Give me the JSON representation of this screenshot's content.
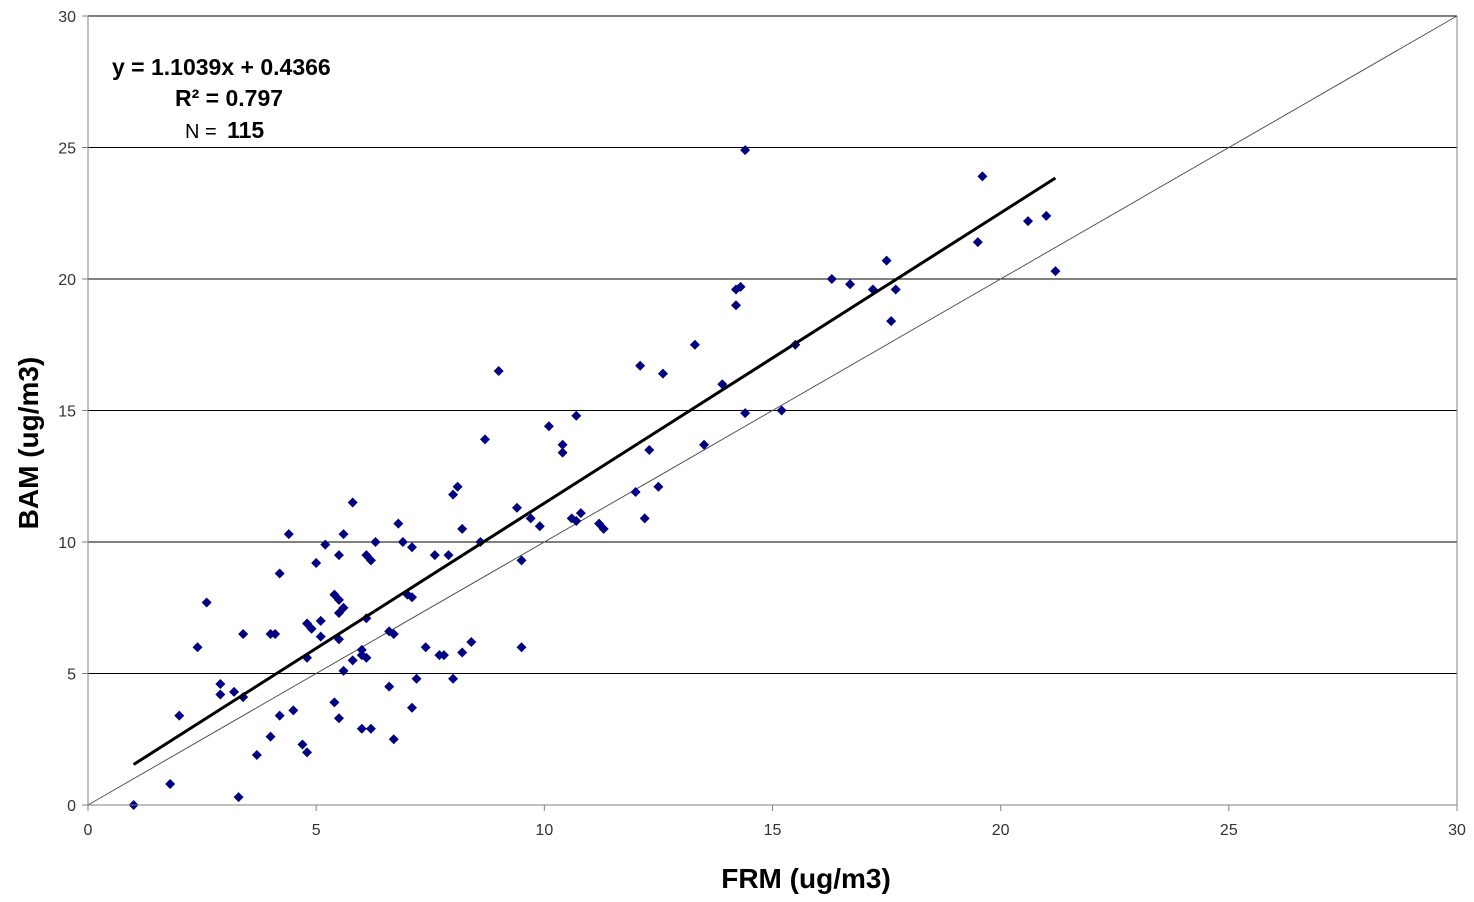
{
  "chart_data": {
    "type": "scatter",
    "xlabel": "FRM (ug/m3)",
    "ylabel": "BAM (ug/m3)",
    "xlim": [
      0,
      30
    ],
    "ylim": [
      0,
      30
    ],
    "x_ticks": [
      "0",
      "5",
      "10",
      "15",
      "20",
      "25",
      "30"
    ],
    "y_ticks": [
      "0",
      "5",
      "10",
      "15",
      "20",
      "25",
      "30"
    ],
    "grid": "horizontal",
    "marker_color": "#000080",
    "annotations": {
      "equation": "y = 1.1039x + 0.4366",
      "r_squared": "R² = 0.797",
      "n_label": "N =",
      "n_value": "115"
    },
    "trendline": {
      "slope": 1.1039,
      "intercept": 0.4366,
      "x_range": [
        1.0,
        21.2
      ]
    },
    "reference_line": {
      "slope": 1,
      "intercept": 0,
      "x_range": [
        0,
        30
      ]
    },
    "points": [
      [
        1.0,
        0.0
      ],
      [
        1.8,
        0.8
      ],
      [
        2.0,
        3.4
      ],
      [
        2.4,
        6.0
      ],
      [
        2.6,
        7.7
      ],
      [
        2.9,
        4.6
      ],
      [
        2.9,
        4.2
      ],
      [
        3.2,
        4.3
      ],
      [
        3.3,
        0.3
      ],
      [
        3.4,
        6.5
      ],
      [
        3.4,
        4.1
      ],
      [
        3.7,
        1.9
      ],
      [
        4.0,
        6.5
      ],
      [
        4.0,
        2.6
      ],
      [
        4.1,
        6.5
      ],
      [
        4.2,
        8.8
      ],
      [
        4.2,
        3.4
      ],
      [
        4.4,
        10.3
      ],
      [
        4.5,
        3.6
      ],
      [
        4.7,
        2.3
      ],
      [
        4.8,
        2.0
      ],
      [
        4.8,
        5.6
      ],
      [
        4.8,
        6.9
      ],
      [
        4.9,
        6.7
      ],
      [
        5.0,
        9.2
      ],
      [
        5.1,
        6.4
      ],
      [
        5.1,
        7.0
      ],
      [
        5.2,
        9.9
      ],
      [
        5.4,
        8.0
      ],
      [
        5.4,
        3.9
      ],
      [
        5.5,
        7.8
      ],
      [
        5.5,
        9.5
      ],
      [
        5.5,
        6.3
      ],
      [
        5.5,
        7.3
      ],
      [
        5.5,
        3.3
      ],
      [
        5.6,
        7.5
      ],
      [
        5.6,
        5.1
      ],
      [
        5.6,
        10.3
      ],
      [
        5.8,
        11.5
      ],
      [
        5.8,
        5.5
      ],
      [
        6.0,
        5.9
      ],
      [
        6.0,
        5.7
      ],
      [
        6.0,
        2.9
      ],
      [
        6.1,
        5.6
      ],
      [
        6.1,
        7.1
      ],
      [
        6.1,
        9.5
      ],
      [
        6.2,
        9.3
      ],
      [
        6.2,
        2.9
      ],
      [
        6.3,
        10.0
      ],
      [
        6.6,
        6.6
      ],
      [
        6.6,
        4.5
      ],
      [
        6.7,
        6.5
      ],
      [
        6.7,
        2.5
      ],
      [
        6.8,
        10.7
      ],
      [
        6.9,
        10.0
      ],
      [
        7.0,
        8.0
      ],
      [
        7.1,
        3.7
      ],
      [
        7.1,
        7.9
      ],
      [
        7.1,
        9.8
      ],
      [
        7.2,
        4.8
      ],
      [
        7.4,
        6.0
      ],
      [
        7.6,
        9.5
      ],
      [
        7.7,
        5.7
      ],
      [
        7.8,
        5.7
      ],
      [
        7.9,
        9.5
      ],
      [
        8.0,
        11.8
      ],
      [
        8.0,
        4.8
      ],
      [
        8.1,
        12.1
      ],
      [
        8.2,
        5.8
      ],
      [
        8.2,
        10.5
      ],
      [
        8.4,
        6.2
      ],
      [
        8.6,
        10.0
      ],
      [
        8.7,
        13.9
      ],
      [
        9.0,
        16.5
      ],
      [
        9.4,
        11.3
      ],
      [
        9.5,
        9.3
      ],
      [
        9.5,
        6.0
      ],
      [
        9.7,
        10.9
      ],
      [
        9.9,
        10.6
      ],
      [
        10.1,
        14.4
      ],
      [
        10.4,
        13.7
      ],
      [
        10.4,
        13.4
      ],
      [
        10.6,
        10.9
      ],
      [
        10.7,
        14.8
      ],
      [
        10.7,
        10.8
      ],
      [
        10.8,
        11.1
      ],
      [
        11.2,
        10.7
      ],
      [
        11.3,
        10.5
      ],
      [
        12.0,
        11.9
      ],
      [
        12.1,
        16.7
      ],
      [
        12.2,
        10.9
      ],
      [
        12.3,
        13.5
      ],
      [
        12.5,
        12.1
      ],
      [
        12.6,
        16.4
      ],
      [
        13.3,
        17.5
      ],
      [
        13.5,
        13.7
      ],
      [
        13.9,
        16.0
      ],
      [
        14.2,
        19.6
      ],
      [
        14.2,
        19.0
      ],
      [
        14.3,
        19.7
      ],
      [
        14.4,
        14.9
      ],
      [
        14.4,
        24.9
      ],
      [
        15.2,
        15.0
      ],
      [
        15.5,
        17.5
      ],
      [
        16.3,
        20.0
      ],
      [
        16.7,
        19.8
      ],
      [
        17.2,
        19.6
      ],
      [
        17.5,
        20.7
      ],
      [
        17.6,
        18.4
      ],
      [
        17.7,
        19.6
      ],
      [
        19.5,
        21.4
      ],
      [
        19.6,
        23.9
      ],
      [
        20.6,
        22.2
      ],
      [
        21.0,
        22.4
      ],
      [
        21.2,
        20.3
      ]
    ]
  }
}
